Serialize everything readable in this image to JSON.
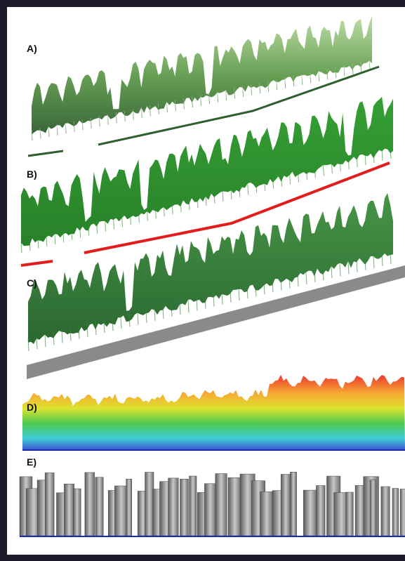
{
  "panels": [
    {
      "label": "A)"
    },
    {
      "label": "B)"
    },
    {
      "label": "C)"
    },
    {
      "label": "D)"
    },
    {
      "label": "E)"
    }
  ]
}
